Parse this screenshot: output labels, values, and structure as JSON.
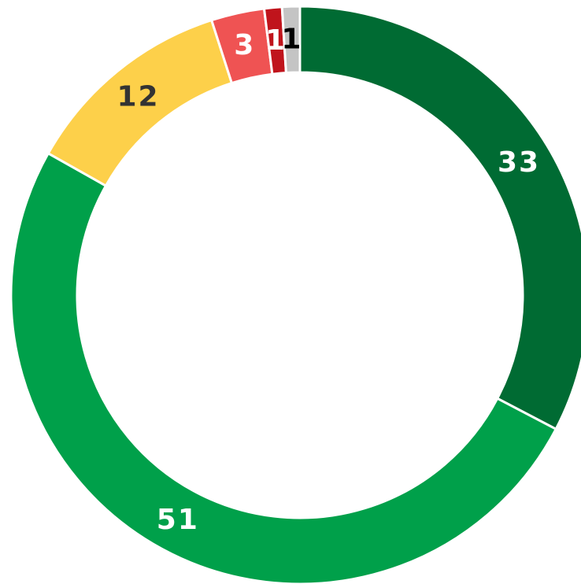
{
  "chart_data": {
    "type": "donut",
    "values": [
      33,
      51,
      12,
      3,
      1,
      1
    ],
    "colors": [
      "#006b33",
      "#00a04a",
      "#fdd04a",
      "#ef5353",
      "#c0141c",
      "#c4c4c4"
    ],
    "label_colors": [
      "#ffffff",
      "#ffffff",
      "#333333",
      "#ffffff",
      "#ffffff",
      "#000000"
    ]
  }
}
